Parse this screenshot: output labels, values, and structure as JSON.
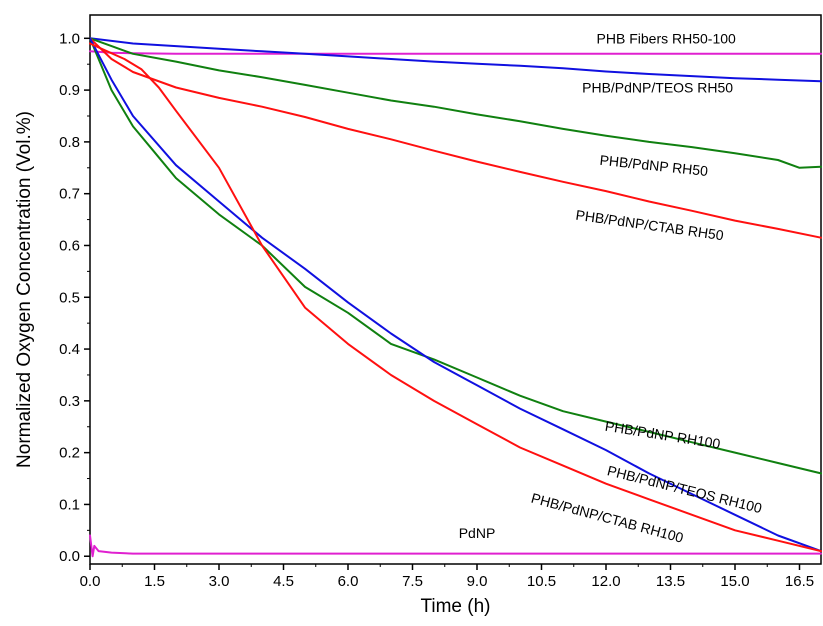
{
  "chart_data": {
    "type": "line",
    "title": "",
    "xlabel": "Time (h)",
    "ylabel": "Normalized Oxygen Concentration (Vol.%)",
    "xlim": [
      0,
      17
    ],
    "ylim": [
      -0.015,
      1.045
    ],
    "x_ticks": [
      "0.0",
      "1.5",
      "3.0",
      "4.5",
      "6.0",
      "7.5",
      "9.0",
      "10.5",
      "12.0",
      "13.5",
      "15.0",
      "16.5"
    ],
    "y_ticks": [
      "0.0",
      "0.1",
      "0.2",
      "0.3",
      "0.4",
      "0.5",
      "0.6",
      "0.7",
      "0.8",
      "0.9",
      "1.0"
    ],
    "grid": false,
    "legend": "none",
    "series": [
      {
        "name": "PHB Fibers RH50-100",
        "color": "#e020d0",
        "x": [
          0,
          0.5,
          1,
          2,
          4,
          6,
          8,
          10,
          12,
          14,
          16,
          17
        ],
        "y": [
          0.975,
          0.972,
          0.971,
          0.97,
          0.97,
          0.97,
          0.97,
          0.97,
          0.97,
          0.97,
          0.97,
          0.97
        ]
      },
      {
        "name": "PHB/PdNP/TEOS RH50",
        "color": "#1010e0",
        "x": [
          0,
          1,
          2,
          3,
          4,
          5,
          6,
          7,
          8,
          9,
          10,
          11,
          12,
          13,
          14,
          15,
          16,
          17
        ],
        "y": [
          1.0,
          0.99,
          0.985,
          0.98,
          0.975,
          0.97,
          0.965,
          0.96,
          0.955,
          0.951,
          0.947,
          0.942,
          0.936,
          0.931,
          0.927,
          0.923,
          0.92,
          0.917
        ]
      },
      {
        "name": "PHB/PdNP RH50",
        "color": "#108010",
        "x": [
          0,
          0.5,
          1,
          2,
          3,
          4,
          5,
          6,
          7,
          8,
          9,
          10,
          11,
          12,
          13,
          14,
          15,
          16,
          16.5,
          17
        ],
        "y": [
          1.0,
          0.985,
          0.97,
          0.955,
          0.938,
          0.925,
          0.91,
          0.895,
          0.88,
          0.868,
          0.853,
          0.84,
          0.825,
          0.812,
          0.8,
          0.79,
          0.778,
          0.765,
          0.75,
          0.752
        ]
      },
      {
        "name": "PHB/PdNP/CTAB RH50",
        "color": "#ff1010",
        "x": [
          0,
          0.5,
          1,
          2,
          3,
          4,
          5,
          6,
          7,
          8,
          9,
          10,
          11,
          12,
          13,
          14,
          15,
          16,
          17
        ],
        "y": [
          1.0,
          0.96,
          0.935,
          0.905,
          0.885,
          0.868,
          0.848,
          0.825,
          0.805,
          0.783,
          0.762,
          0.742,
          0.723,
          0.705,
          0.685,
          0.667,
          0.648,
          0.632,
          0.615
        ]
      },
      {
        "name": "PHB/PdNP RH100",
        "color": "#108010",
        "x": [
          0,
          0.5,
          1,
          1.5,
          2,
          3,
          4,
          5,
          6,
          7,
          8,
          9,
          10,
          11,
          12,
          13,
          14,
          15,
          16,
          17
        ],
        "y": [
          1.0,
          0.9,
          0.83,
          0.78,
          0.73,
          0.66,
          0.6,
          0.52,
          0.47,
          0.41,
          0.38,
          0.345,
          0.31,
          0.28,
          0.26,
          0.24,
          0.22,
          0.2,
          0.18,
          0.16
        ]
      },
      {
        "name": "PHB/PdNP/TEOS RH100",
        "color": "#1010e0",
        "x": [
          0,
          0.5,
          1,
          2,
          3,
          4,
          5,
          6,
          7,
          8,
          9,
          10,
          11,
          12,
          13,
          14,
          15,
          16,
          17
        ],
        "y": [
          1.0,
          0.92,
          0.85,
          0.755,
          0.685,
          0.615,
          0.555,
          0.49,
          0.43,
          0.375,
          0.33,
          0.285,
          0.245,
          0.205,
          0.16,
          0.12,
          0.08,
          0.04,
          0.01
        ]
      },
      {
        "name": "PHB/PdNP/CTAB RH100",
        "color": "#ff1010",
        "x": [
          0,
          0.4,
          0.8,
          1.2,
          1.6,
          2,
          3,
          4,
          5,
          6,
          7,
          8,
          9,
          10,
          11,
          12,
          13,
          14,
          15,
          16,
          17
        ],
        "y": [
          0.99,
          0.975,
          0.96,
          0.94,
          0.905,
          0.86,
          0.75,
          0.6,
          0.48,
          0.41,
          0.35,
          0.3,
          0.255,
          0.21,
          0.175,
          0.14,
          0.11,
          0.08,
          0.05,
          0.03,
          0.01
        ]
      },
      {
        "name": "PdNP",
        "color": "#e020d0",
        "x": [
          0,
          0.03,
          0.06,
          0.1,
          0.2,
          0.5,
          1,
          3,
          6,
          9,
          12,
          15,
          17
        ],
        "y": [
          0.04,
          0.02,
          0.0,
          0.02,
          0.01,
          0.007,
          0.005,
          0.005,
          0.005,
          0.005,
          0.005,
          0.005,
          0.005
        ]
      }
    ],
    "annotations": [
      {
        "text": "PHB Fibers RH50-100",
        "series": 0,
        "x": 13.4,
        "y": 0.99,
        "angle": 0
      },
      {
        "text": "PHB/PdNP/TEOS RH50",
        "series": 1,
        "x": 13.2,
        "y": 0.895,
        "angle": 0
      },
      {
        "text": "PHB/PdNP RH50",
        "series": 2,
        "x": 13.1,
        "y": 0.745,
        "angle": 6
      },
      {
        "text": "PHB/PdNP/CTAB RH50",
        "series": 3,
        "x": 13.0,
        "y": 0.63,
        "angle": 8
      },
      {
        "text": "PHB/PdNP RH100",
        "series": 4,
        "x": 13.3,
        "y": 0.225,
        "angle": 9
      },
      {
        "text": "PHB/PdNP/TEOS RH100",
        "series": 5,
        "x": 13.8,
        "y": 0.12,
        "angle": 14
      },
      {
        "text": "PHB/PdNP/CTAB RH100",
        "series": 6,
        "x": 12.0,
        "y": 0.065,
        "angle": 15
      },
      {
        "text": "PdNP",
        "series": 7,
        "x": 9.0,
        "y": 0.035,
        "angle": 0
      }
    ]
  }
}
